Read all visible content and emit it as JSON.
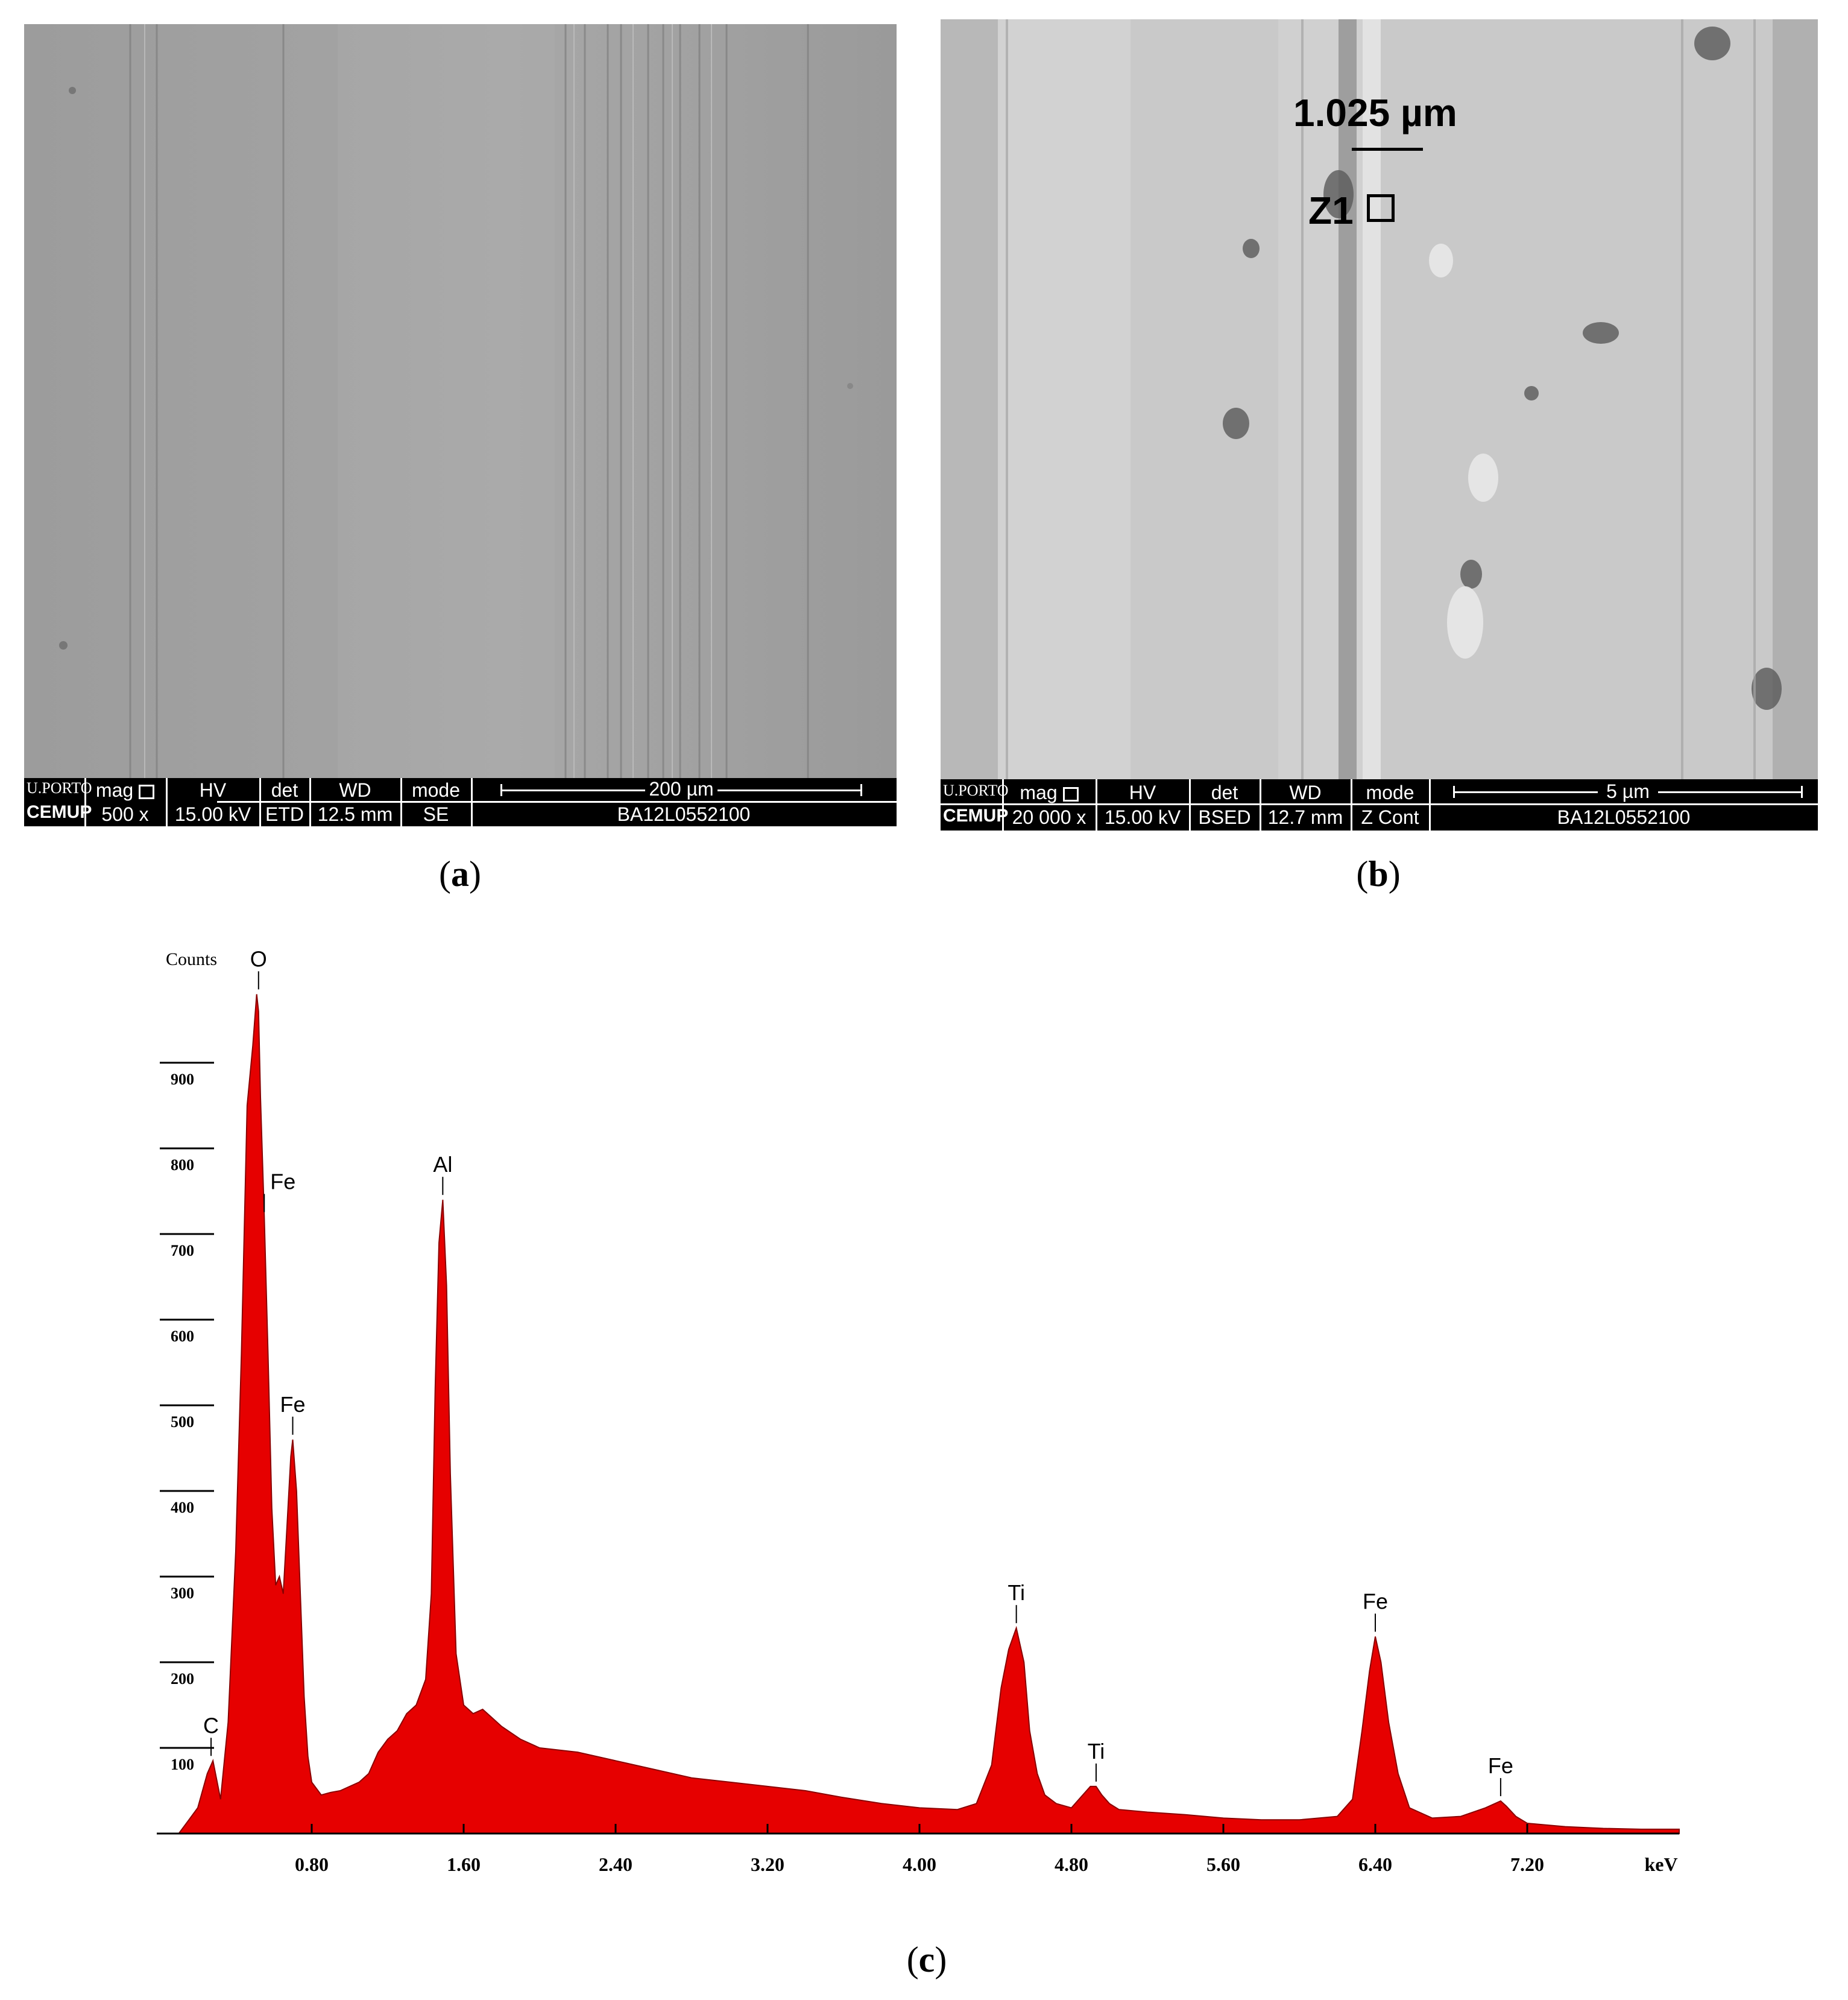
{
  "panels": {
    "a": {
      "label": "a",
      "info": {
        "logo_top": "U.PORTO",
        "logo_bottom": "CEMUP",
        "mag_label": "mag",
        "mag_value": "500 x",
        "hv_label": "HV",
        "hv_value": "15.00 kV",
        "det_label": "det",
        "det_value": "ETD",
        "wd_label": "WD",
        "wd_value": "12.5 mm",
        "mode_label": "mode",
        "mode_value": "SE",
        "scalebar_label": "200 µm",
        "sample_id": "BA12L0552100"
      }
    },
    "b": {
      "label": "b",
      "annotation_measure": "1.025 µm",
      "annotation_zone": "Z1",
      "info": {
        "logo_top": "U.PORTO",
        "logo_bottom": "CEMUP",
        "mag_label": "mag",
        "mag_value": "20 000 x",
        "hv_label": "HV",
        "hv_value": "15.00 kV",
        "det_label": "det",
        "det_value": "BSED",
        "wd_label": "WD",
        "wd_value": "12.7 mm",
        "mode_label": "mode",
        "mode_value": "Z Cont",
        "scalebar_label": "5 µm",
        "sample_id": "BA12L0552100"
      }
    },
    "c": {
      "label": "c"
    }
  },
  "chart_data": {
    "type": "area",
    "color": "#e60000",
    "ylabel": "Counts",
    "xlabel": "keV",
    "xlim": [
      0,
      8.0
    ],
    "ylim": [
      0,
      1000
    ],
    "yticks": [
      100,
      200,
      300,
      400,
      500,
      600,
      700,
      800,
      900
    ],
    "xticks": [
      0.8,
      1.6,
      2.4,
      3.2,
      4.0,
      4.8,
      5.6,
      6.4,
      7.2
    ],
    "xtick_labels": [
      "0.80",
      "1.60",
      "2.40",
      "3.20",
      "4.00",
      "4.80",
      "5.60",
      "6.40",
      "7.20"
    ],
    "peaks": [
      {
        "label": "C",
        "x": 0.27,
        "y": 85
      },
      {
        "label": "O",
        "x": 0.52,
        "y": 980
      },
      {
        "label": "Fe",
        "x": 0.55,
        "y": 720
      },
      {
        "label": "Fe",
        "x": 0.7,
        "y": 460
      },
      {
        "label": "Al",
        "x": 1.49,
        "y": 740
      },
      {
        "label": "Ti",
        "x": 4.51,
        "y": 240
      },
      {
        "label": "Ti",
        "x": 4.93,
        "y": 55
      },
      {
        "label": "Fe",
        "x": 6.4,
        "y": 230
      },
      {
        "label": "Fe",
        "x": 7.06,
        "y": 38
      }
    ],
    "spectrum_x": [
      0.1,
      0.15,
      0.2,
      0.25,
      0.28,
      0.32,
      0.36,
      0.4,
      0.43,
      0.46,
      0.49,
      0.51,
      0.52,
      0.53,
      0.55,
      0.57,
      0.59,
      0.61,
      0.63,
      0.65,
      0.67,
      0.69,
      0.7,
      0.72,
      0.74,
      0.76,
      0.78,
      0.8,
      0.85,
      0.9,
      0.95,
      1.0,
      1.05,
      1.1,
      1.15,
      1.2,
      1.25,
      1.3,
      1.35,
      1.4,
      1.43,
      1.45,
      1.47,
      1.49,
      1.51,
      1.53,
      1.56,
      1.6,
      1.65,
      1.7,
      1.75,
      1.8,
      1.9,
      2.0,
      2.2,
      2.4,
      2.6,
      2.8,
      3.0,
      3.2,
      3.4,
      3.6,
      3.8,
      4.0,
      4.2,
      4.3,
      4.38,
      4.43,
      4.47,
      4.51,
      4.55,
      4.58,
      4.62,
      4.66,
      4.72,
      4.8,
      4.86,
      4.9,
      4.93,
      4.96,
      5.0,
      5.05,
      5.2,
      5.4,
      5.6,
      5.8,
      6.0,
      6.2,
      6.28,
      6.33,
      6.37,
      6.4,
      6.43,
      6.47,
      6.52,
      6.58,
      6.7,
      6.85,
      6.98,
      7.03,
      7.06,
      7.09,
      7.14,
      7.2,
      7.4,
      7.6,
      7.8,
      8.0
    ],
    "spectrum_y": [
      0,
      15,
      30,
      70,
      85,
      40,
      130,
      330,
      560,
      850,
      920,
      980,
      960,
      860,
      720,
      560,
      380,
      290,
      300,
      280,
      360,
      440,
      460,
      400,
      280,
      160,
      90,
      60,
      45,
      48,
      50,
      55,
      60,
      70,
      95,
      110,
      120,
      140,
      150,
      180,
      280,
      520,
      690,
      740,
      640,
      420,
      210,
      150,
      140,
      145,
      135,
      125,
      110,
      100,
      95,
      85,
      75,
      65,
      60,
      55,
      50,
      42,
      35,
      30,
      28,
      35,
      80,
      170,
      215,
      240,
      200,
      120,
      70,
      45,
      35,
      30,
      45,
      55,
      55,
      45,
      35,
      28,
      25,
      22,
      18,
      16,
      16,
      20,
      40,
      120,
      190,
      230,
      200,
      130,
      70,
      30,
      18,
      20,
      30,
      35,
      38,
      32,
      20,
      12,
      8,
      6,
      5,
      5
    ]
  }
}
